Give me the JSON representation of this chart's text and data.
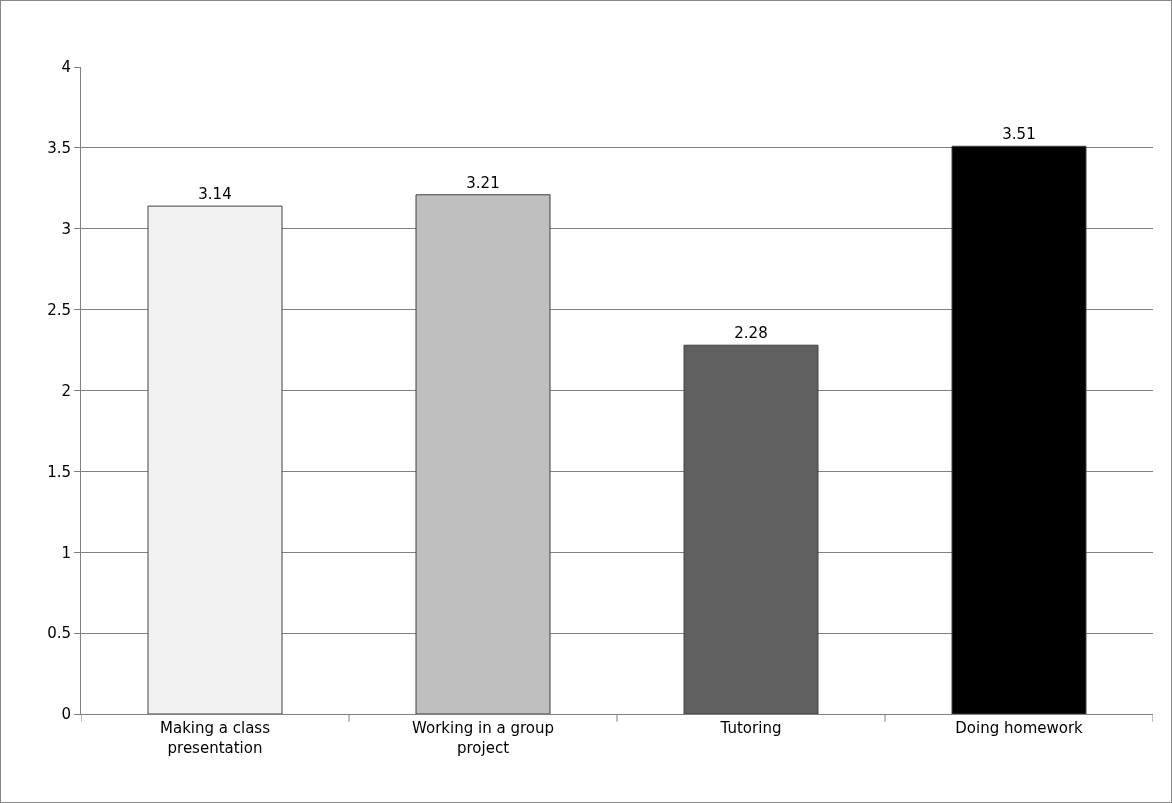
{
  "chart_data": {
    "type": "bar",
    "categories": [
      "Making a class presentation",
      "Working in a group project",
      "Tutoring",
      "Doing homework"
    ],
    "values": [
      3.14,
      3.21,
      2.28,
      3.51
    ],
    "colors": [
      "#f2f2f2",
      "#bfbfbf",
      "#606060",
      "#000000"
    ],
    "ylim": [
      0,
      4
    ],
    "yticks": [
      0,
      0.5,
      1,
      1.5,
      2,
      2.5,
      3,
      3.5,
      4
    ],
    "grid": "y",
    "data_labels": true
  }
}
